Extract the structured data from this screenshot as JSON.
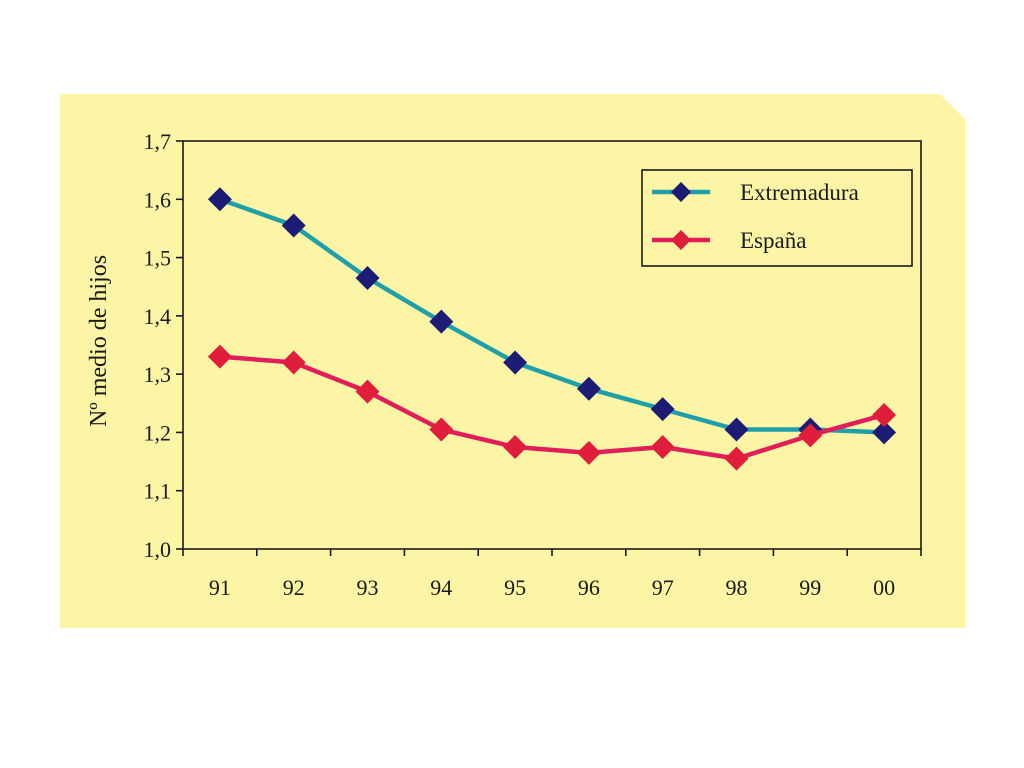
{
  "colors": {
    "background": "#fdf5a6",
    "axis": "#1a1a1a",
    "extremadura_line": "#1fa0a8",
    "extremadura_marker": "#1c1c74",
    "espana_line": "#e01e5a",
    "espana_marker": "#e01e3c"
  },
  "chart_data": {
    "type": "line",
    "title": "",
    "xlabel": "",
    "ylabel": "Nº medio de hijos",
    "categories": [
      "91",
      "92",
      "93",
      "94",
      "95",
      "96",
      "97",
      "98",
      "99",
      "00"
    ],
    "yticks": [
      "1,0",
      "1,1",
      "1,2",
      "1,3",
      "1,4",
      "1,5",
      "1,6",
      "1,7"
    ],
    "ylim": [
      1.0,
      1.7
    ],
    "grid": false,
    "legend_position": "top-right",
    "series": [
      {
        "name": "Extremadura",
        "marker": "diamond",
        "values": [
          1.6,
          1.555,
          1.465,
          1.39,
          1.32,
          1.275,
          1.24,
          1.205,
          1.205,
          1.2
        ]
      },
      {
        "name": "España",
        "marker": "diamond",
        "values": [
          1.33,
          1.32,
          1.27,
          1.205,
          1.175,
          1.165,
          1.175,
          1.155,
          1.195,
          1.23
        ]
      }
    ]
  }
}
